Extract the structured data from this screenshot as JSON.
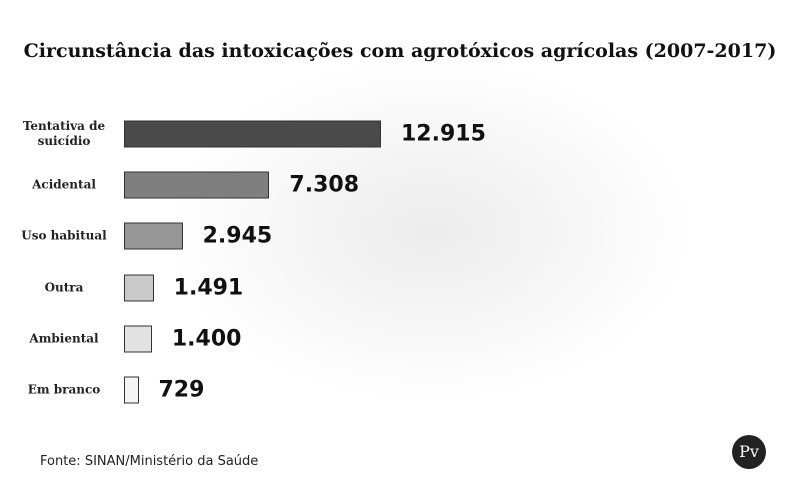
{
  "chart_data": {
    "type": "hbar",
    "title": "Circunstância das intoxicações com agrotóxicos agrícolas (2007-2017)",
    "categories": [
      "Tentativa de suicídio",
      "Acidental",
      "Uso habitual",
      "Outra",
      "Ambiental",
      "Em branco"
    ],
    "values": [
      12915,
      7308,
      2945,
      1491,
      1400,
      729
    ],
    "value_labels": [
      "12.915",
      "7.308",
      "2.945",
      "1.491",
      "1.400",
      "729"
    ],
    "colors": [
      "#4a4a4a",
      "#7f7f7f",
      "#969696",
      "#c9c9c9",
      "#e2e2e2",
      "#f4f4f4"
    ],
    "source": "Fonte: SINAN/Ministério da Saúde"
  },
  "logo": "Pv"
}
